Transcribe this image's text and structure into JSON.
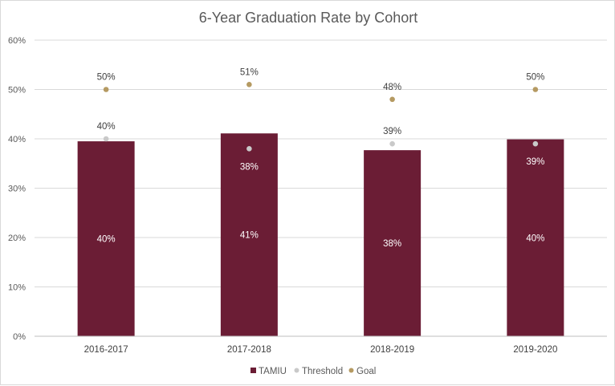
{
  "chart_data": {
    "type": "bar",
    "title": "6-Year Graduation Rate by Cohort",
    "categories": [
      "2016-2017",
      "2017-2018",
      "2018-2019",
      "2019-2020"
    ],
    "ylim": [
      0,
      60
    ],
    "yticks": [
      "0%",
      "10%",
      "20%",
      "30%",
      "40%",
      "50%",
      "60%"
    ],
    "grid": true,
    "legend_position": "bottom",
    "series": [
      {
        "name": "TAMIU",
        "kind": "bar",
        "color": "#6b1d35",
        "values": [
          39.5,
          41.1,
          37.7,
          39.9
        ],
        "labels": [
          "40%",
          "41%",
          "38%",
          "40%"
        ]
      },
      {
        "name": "Threshold",
        "kind": "marker",
        "color": "#c9c9c9",
        "values": [
          40,
          38,
          39,
          39
        ],
        "labels": [
          "40%",
          "38%",
          "39%",
          "39%"
        ]
      },
      {
        "name": "Goal",
        "kind": "marker",
        "color": "#b59a62",
        "values": [
          50,
          51,
          48,
          50
        ],
        "labels": [
          "50%",
          "51%",
          "48%",
          "50%"
        ]
      }
    ]
  }
}
